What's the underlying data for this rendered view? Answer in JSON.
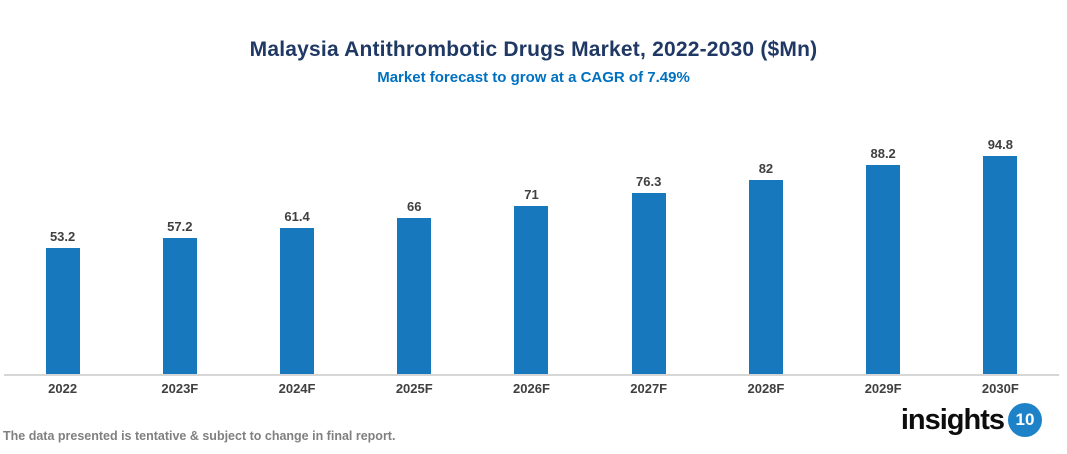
{
  "header": {
    "title": "Malaysia Antithrombotic Drugs Market, 2022-2030 ($Mn)",
    "subtitle": "Market forecast to grow at a CAGR of 7.49%"
  },
  "chart_data": {
    "type": "bar",
    "categories": [
      "2022",
      "2023F",
      "2024F",
      "2025F",
      "2026F",
      "2027F",
      "2028F",
      "2029F",
      "2030F"
    ],
    "values": [
      53.2,
      57.2,
      61.4,
      66,
      71,
      76.3,
      82,
      88.2,
      94.8
    ],
    "data_labels": [
      "53.2",
      "57.2",
      "61.4",
      "66",
      "71",
      "76.3",
      "82",
      "88.2",
      "94.8"
    ],
    "title": "Malaysia Antithrombotic Drugs Market, 2022-2030 ($Mn)",
    "subtitle": "Market forecast to grow at a CAGR of 7.49%",
    "xlabel": "",
    "ylabel": "",
    "ylim": [
      0,
      100
    ],
    "grid": false,
    "legend": "none",
    "bar_color": "#1878BE"
  },
  "footer": {
    "disclaimer": "The data presented is tentative & subject to change in final report.",
    "logo_text": "insights",
    "logo_badge": "10"
  },
  "colors": {
    "title_text": "#1F3864",
    "subtitle_text": "#0070C0",
    "bar": "#1878BE",
    "value_label": "#404040",
    "axis_line": "#D6D6D6",
    "footer_text": "#808080",
    "logo_badge_bg": "#1E82C8"
  }
}
